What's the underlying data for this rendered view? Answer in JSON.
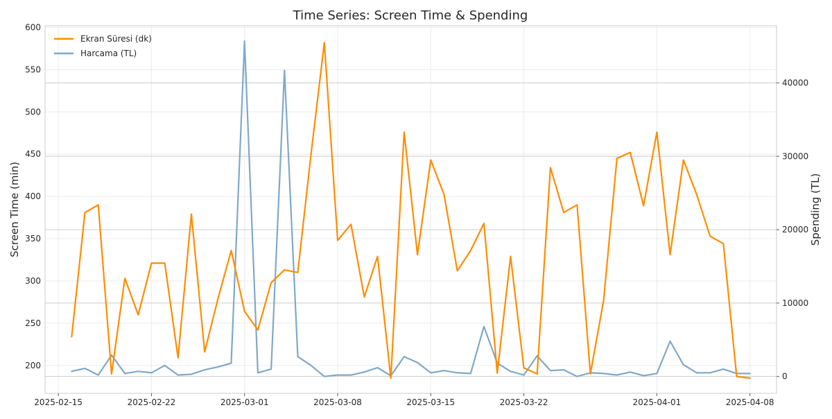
{
  "chart_data": {
    "type": "line",
    "title": "Time Series: Screen Time & Spending",
    "xlabel": "",
    "ylabel_left": "Screen Time (min)",
    "ylabel_right": "Spending (TL)",
    "x_start": "2025-02-16",
    "x_ticks": [
      "2025-02-15",
      "2025-02-22",
      "2025-03-01",
      "2025-03-08",
      "2025-03-15",
      "2025-03-22",
      "2025-04-01",
      "2025-04-08"
    ],
    "xlim": [
      "2025-02-14",
      "2025-04-10"
    ],
    "ylim_left": [
      167,
      602
    ],
    "ylim_right": [
      -2300,
      47800
    ],
    "y_ticks_left": [
      200,
      250,
      300,
      350,
      400,
      450,
      500,
      550,
      600
    ],
    "y_ticks_right": [
      0,
      10000,
      20000,
      30000,
      40000
    ],
    "grid": true,
    "legend_position": "top-left",
    "series": [
      {
        "name": "Ekran Süresi (dk)",
        "axis": "left",
        "color": "#ff8c00",
        "values": [
          234,
          381,
          390,
          190,
          303,
          260,
          321,
          321,
          209,
          379,
          216,
          279,
          336,
          264,
          242,
          298,
          313,
          310,
          450,
          582,
          348,
          367,
          281,
          329,
          185,
          476,
          331,
          443,
          402,
          312,
          336,
          368,
          191,
          329,
          197,
          190,
          434,
          381,
          390,
          190,
          277,
          445,
          452,
          389,
          476,
          331,
          443,
          402,
          353,
          344,
          187,
          185
        ]
      },
      {
        "name": "Harcama (TL)",
        "axis": "right",
        "color": "#7fa8c9",
        "values": [
          700,
          1100,
          200,
          2900,
          400,
          700,
          500,
          1500,
          200,
          300,
          900,
          1300,
          1800,
          45700,
          500,
          1000,
          41700,
          2700,
          1500,
          0,
          200,
          200,
          600,
          1200,
          100,
          2700,
          1900,
          500,
          800,
          500,
          400,
          6800,
          1800,
          700,
          200,
          2800,
          800,
          900,
          0,
          500,
          400,
          200,
          600,
          100,
          400,
          4800,
          1600,
          500,
          500,
          1000,
          400,
          400
        ]
      }
    ]
  }
}
